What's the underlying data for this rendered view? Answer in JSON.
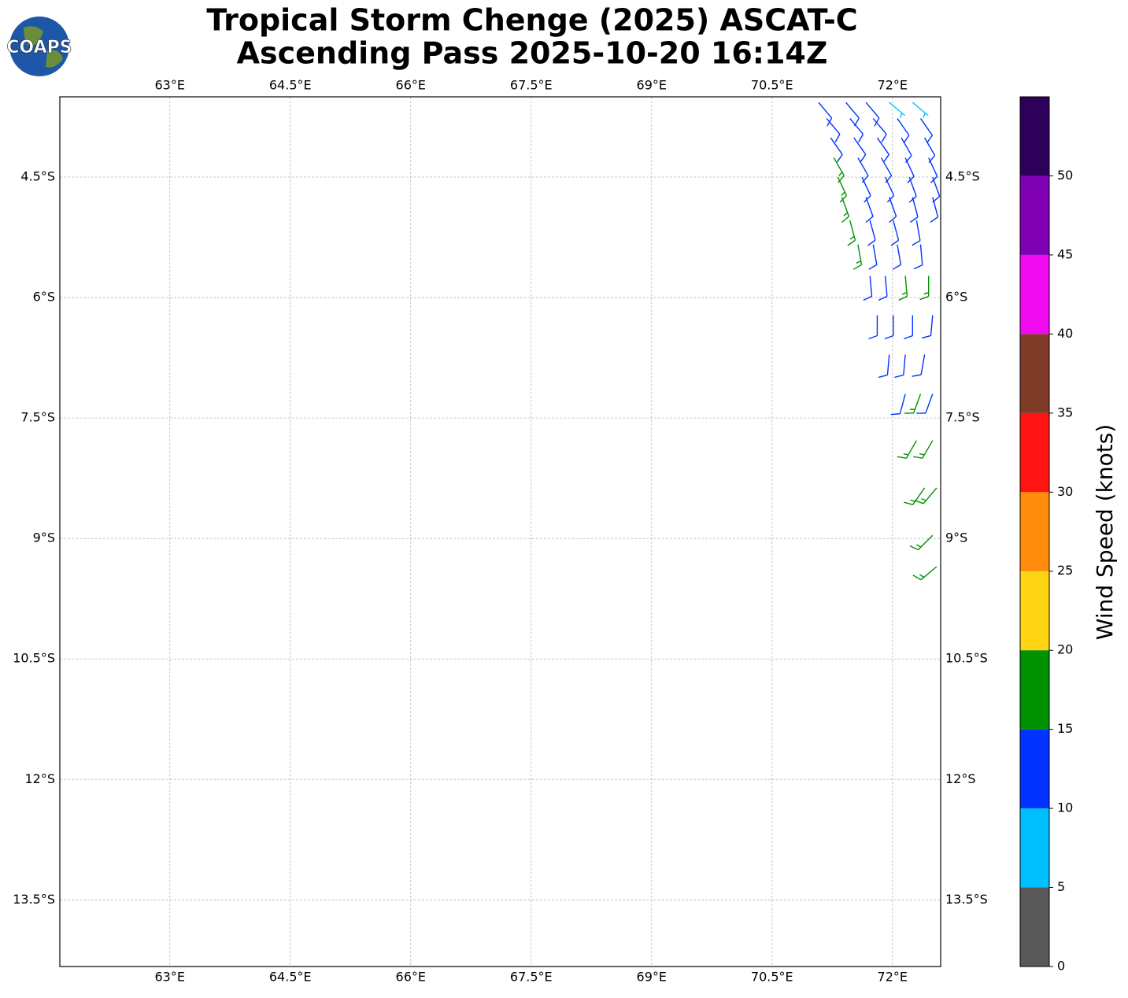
{
  "chart_data": {
    "type": "wind-barbs",
    "title": "Tropical Storm Chenge (2025) ASCAT-C",
    "subtitle": "Ascending Pass 2025-10-20 16:14Z",
    "logo": "COAPS",
    "xlim": [
      61.63,
      72.6
    ],
    "ylim": [
      -14.33,
      -3.5
    ],
    "xticks": [
      {
        "value": 63,
        "label": "63°E"
      },
      {
        "value": 64.5,
        "label": "64.5°E"
      },
      {
        "value": 66,
        "label": "66°E"
      },
      {
        "value": 67.5,
        "label": "67.5°E"
      },
      {
        "value": 69,
        "label": "69°E"
      },
      {
        "value": 70.5,
        "label": "70.5°E"
      },
      {
        "value": 72,
        "label": "72°E"
      }
    ],
    "yticks": [
      {
        "value": -4.5,
        "label": "4.5°S"
      },
      {
        "value": -6,
        "label": "6°S"
      },
      {
        "value": -7.5,
        "label": "7.5°S"
      },
      {
        "value": -9,
        "label": "9°S"
      },
      {
        "value": -10.5,
        "label": "10.5°S"
      },
      {
        "value": -12,
        "label": "12°S"
      },
      {
        "value": -13.5,
        "label": "13.5°S"
      }
    ],
    "grid": true,
    "colorbar": {
      "label": "Wind Speed (knots)",
      "bounds": [
        0,
        5,
        10,
        15,
        20,
        25,
        30,
        35,
        40,
        45,
        50,
        55
      ],
      "colors": [
        "#595959",
        "#00bfff",
        "#0033ff",
        "#009100",
        "#ffd414",
        "#ff8c0a",
        "#ff1414",
        "#7f3a28",
        "#f00af0",
        "#8000b4",
        "#2d005a"
      ],
      "ticks": [
        0,
        5,
        10,
        15,
        20,
        25,
        30,
        35,
        40,
        45,
        50
      ]
    },
    "barbs": {
      "lon": [
        71.08,
        71.42,
        71.67,
        71.96,
        72.25,
        71.18,
        71.47,
        71.76,
        72.06,
        72.35,
        71.23,
        71.52,
        71.81,
        72.11,
        72.4,
        71.27,
        71.57,
        71.86,
        72.16,
        72.45,
        71.32,
        71.62,
        71.91,
        72.21,
        72.5,
        71.37,
        71.67,
        71.96,
        72.25,
        72.5,
        71.47,
        71.72,
        72.01,
        72.3,
        71.57,
        71.76,
        72.06,
        72.35,
        71.72,
        71.91,
        72.16,
        72.45,
        71.81,
        72.01,
        72.25,
        72.5,
        71.96,
        72.16,
        72.4,
        72.16,
        72.35,
        72.5,
        72.3,
        72.5,
        72.4,
        72.55,
        72.5,
        72.55
      ],
      "lat": [
        -3.57,
        -3.57,
        -3.57,
        -3.57,
        -3.57,
        -3.77,
        -3.77,
        -3.77,
        -3.77,
        -3.77,
        -4.01,
        -4.01,
        -4.01,
        -4.01,
        -4.01,
        -4.26,
        -4.26,
        -4.26,
        -4.26,
        -4.26,
        -4.5,
        -4.5,
        -4.5,
        -4.5,
        -4.5,
        -4.75,
        -4.75,
        -4.75,
        -4.75,
        -4.75,
        -5.04,
        -5.04,
        -5.04,
        -5.04,
        -5.34,
        -5.34,
        -5.34,
        -5.34,
        -5.73,
        -5.73,
        -5.73,
        -5.73,
        -6.22,
        -6.22,
        -6.22,
        -6.22,
        -6.71,
        -6.71,
        -6.71,
        -7.2,
        -7.2,
        -7.2,
        -7.78,
        -7.78,
        -8.37,
        -8.37,
        -8.96,
        -9.35
      ],
      "speed": [
        12,
        12,
        12,
        8,
        8,
        12,
        12,
        12,
        12,
        12,
        12,
        12,
        12,
        12,
        12,
        17,
        12,
        12,
        12,
        12,
        17,
        12,
        12,
        12,
        12,
        17,
        12,
        12,
        12,
        12,
        17,
        12,
        12,
        12,
        17,
        12,
        12,
        12,
        12,
        12,
        17,
        17,
        12,
        12,
        12,
        12,
        12,
        12,
        12,
        12,
        17,
        12,
        17,
        17,
        17,
        17,
        17,
        17
      ],
      "direction": [
        140,
        140,
        140,
        130,
        130,
        140,
        140,
        140,
        145,
        145,
        145,
        145,
        145,
        150,
        150,
        150,
        150,
        150,
        155,
        155,
        155,
        155,
        155,
        160,
        160,
        160,
        160,
        160,
        165,
        165,
        165,
        165,
        165,
        170,
        170,
        170,
        170,
        175,
        175,
        175,
        175,
        180,
        180,
        180,
        180,
        185,
        185,
        185,
        190,
        195,
        200,
        200,
        210,
        210,
        215,
        220,
        225,
        230
      ]
    }
  }
}
